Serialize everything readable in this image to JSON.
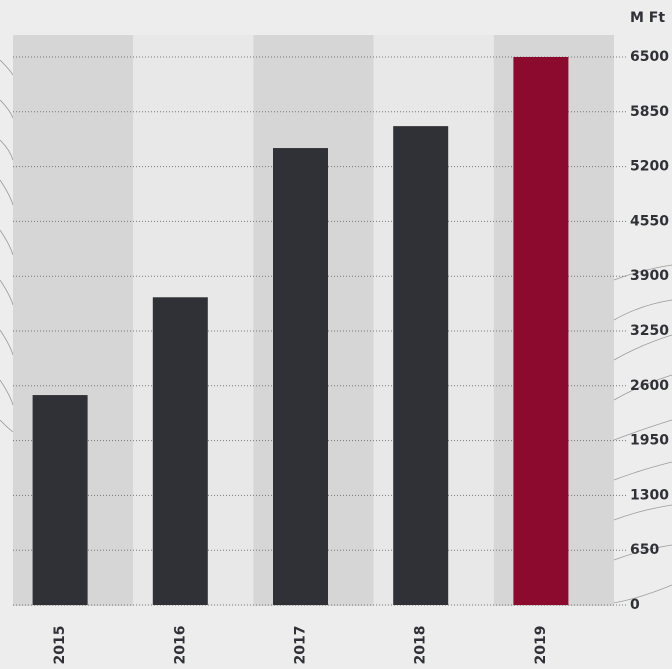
{
  "chart_data": {
    "type": "bar",
    "y_axis_label": "M Ft",
    "categories": [
      "2015",
      "2016",
      "2017",
      "2018",
      "2019"
    ],
    "values": [
      2490,
      3650,
      5420,
      5680,
      6500
    ],
    "colors": [
      "#2f3136",
      "#2f3136",
      "#2f3136",
      "#2f3136",
      "#8b0a2e"
    ],
    "ylim": [
      0,
      6500
    ],
    "yticks": [
      0,
      650,
      1300,
      1950,
      2600,
      3250,
      3900,
      4550,
      5200,
      5850,
      6500
    ],
    "grid": true
  }
}
